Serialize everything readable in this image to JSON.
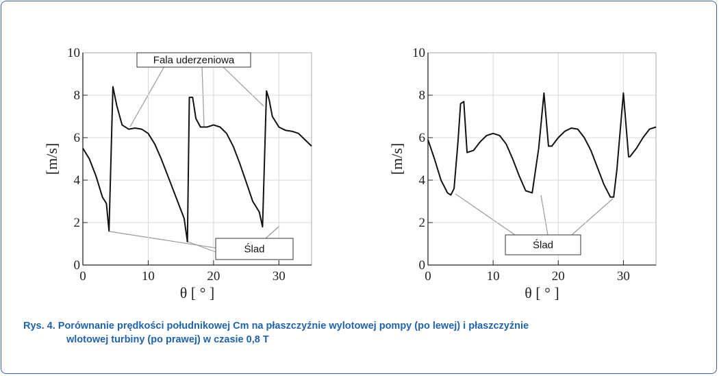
{
  "chart_data": [
    {
      "type": "line",
      "xlabel": "θ [ ° ]",
      "ylabel": "[m/s]",
      "xlim": [
        0,
        35
      ],
      "ylim": [
        0,
        10
      ],
      "xticks": [
        0,
        10,
        20,
        30
      ],
      "yticks": [
        0,
        2,
        4,
        6,
        8,
        10
      ],
      "grid": true,
      "series": [
        {
          "color": "#111111",
          "x": [
            0,
            1,
            2,
            3,
            3.6,
            4.0,
            4.6,
            5.2,
            6,
            7,
            8,
            9,
            10,
            11,
            12,
            13,
            14,
            15,
            15.5,
            16,
            16.3,
            16.8,
            17.3,
            18,
            19,
            20,
            21,
            22,
            23,
            24,
            25,
            26,
            27,
            27.5,
            28.1,
            28.5,
            29,
            30,
            31,
            32,
            33,
            34,
            35
          ],
          "values": [
            5.5,
            5.0,
            4.2,
            3.2,
            2.9,
            1.6,
            8.4,
            7.5,
            6.6,
            6.4,
            6.45,
            6.4,
            6.2,
            5.7,
            5.0,
            4.2,
            3.4,
            2.6,
            2.2,
            1.1,
            7.9,
            7.9,
            6.9,
            6.5,
            6.5,
            6.6,
            6.5,
            6.2,
            5.6,
            4.8,
            3.9,
            3.0,
            2.5,
            1.8,
            8.2,
            7.8,
            7.0,
            6.5,
            6.35,
            6.3,
            6.2,
            5.9,
            5.6
          ]
        }
      ],
      "annotations": [
        "Fala uderzeniowa",
        "Ślad"
      ]
    },
    {
      "type": "line",
      "xlabel": "θ [ ° ]",
      "ylabel": "[m/s]",
      "xlim": [
        0,
        35
      ],
      "ylim": [
        0,
        10
      ],
      "xticks": [
        0,
        10,
        20,
        30
      ],
      "yticks": [
        0,
        2,
        4,
        6,
        8,
        10
      ],
      "grid": true,
      "series": [
        {
          "color": "#111111",
          "x": [
            0,
            1,
            2,
            3,
            3.5,
            4,
            4.6,
            5,
            5.5,
            6,
            7,
            8,
            9,
            10,
            11,
            12,
            13,
            14,
            15,
            16,
            17,
            17.8,
            18.5,
            19,
            20,
            21,
            22,
            23,
            24,
            25,
            26,
            27,
            28,
            28.5,
            29,
            30,
            30.8,
            31,
            32,
            33,
            34,
            35
          ],
          "values": [
            5.9,
            5.0,
            4.0,
            3.4,
            3.3,
            3.6,
            5.8,
            7.6,
            7.7,
            5.3,
            5.4,
            5.8,
            6.1,
            6.2,
            6.1,
            5.7,
            5.0,
            4.2,
            3.5,
            3.4,
            5.5,
            8.1,
            5.6,
            5.6,
            6.0,
            6.3,
            6.45,
            6.4,
            6.0,
            5.4,
            4.6,
            3.8,
            3.2,
            3.2,
            4.5,
            8.1,
            5.1,
            5.1,
            5.5,
            6.0,
            6.4,
            6.5
          ]
        }
      ],
      "annotations": [
        "Ślad"
      ]
    }
  ],
  "caption": {
    "label": "Rys. 4.",
    "lines": [
      "Porównanie prędkości południkowej Cm na płaszczyźnie wylotowej pompy (po lewej) i płaszczyźnie",
      "wlotowej turbiny (po prawej) w czasie 0,8 T"
    ]
  }
}
